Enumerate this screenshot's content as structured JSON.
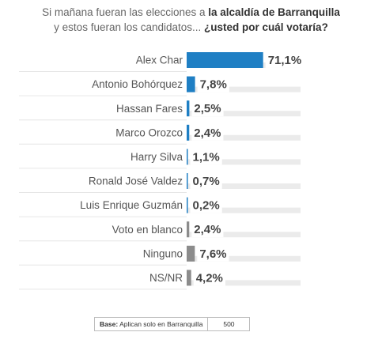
{
  "title": {
    "line1_normal": "Si mañana fueran las elecciones a ",
    "line1_bold": "la alcaldía de Barranquilla",
    "line2_normal": "y estos fueran los candidatos... ",
    "line2_bold": "¿usted por cuál votaría?"
  },
  "chart_data": {
    "type": "bar",
    "orientation": "horizontal",
    "categories": [
      "Alex Char",
      "Antonio Bohórquez",
      "Hassan Fares",
      "Marco Orozco",
      "Harry Silva",
      "Ronald José Valdez",
      "Luis Enrique Guzmán",
      "Voto en blanco",
      "Ninguno",
      "NS/NR"
    ],
    "values": [
      71.1,
      7.8,
      2.5,
      2.4,
      1.1,
      0.7,
      0.2,
      2.4,
      7.6,
      4.2
    ],
    "value_labels": [
      "71,1%",
      "7,8%",
      "2,5%",
      "2,4%",
      "1,1%",
      "0,7%",
      "0,2%",
      "2,4%",
      "7,6%",
      "4,2%"
    ],
    "bar_colors": [
      "#1f7fc4",
      "#1f7fc4",
      "#1f7fc4",
      "#1f7fc4",
      "#1f7fc4",
      "#1f7fc4",
      "#1f7fc4",
      "#8c8c8c",
      "#8c8c8c",
      "#8c8c8c"
    ],
    "track_color": "#ebebeb",
    "xlim": [
      0,
      100
    ]
  },
  "base": {
    "label": "Base:",
    "text": "Aplican solo en Barranquilla",
    "n": "500"
  }
}
